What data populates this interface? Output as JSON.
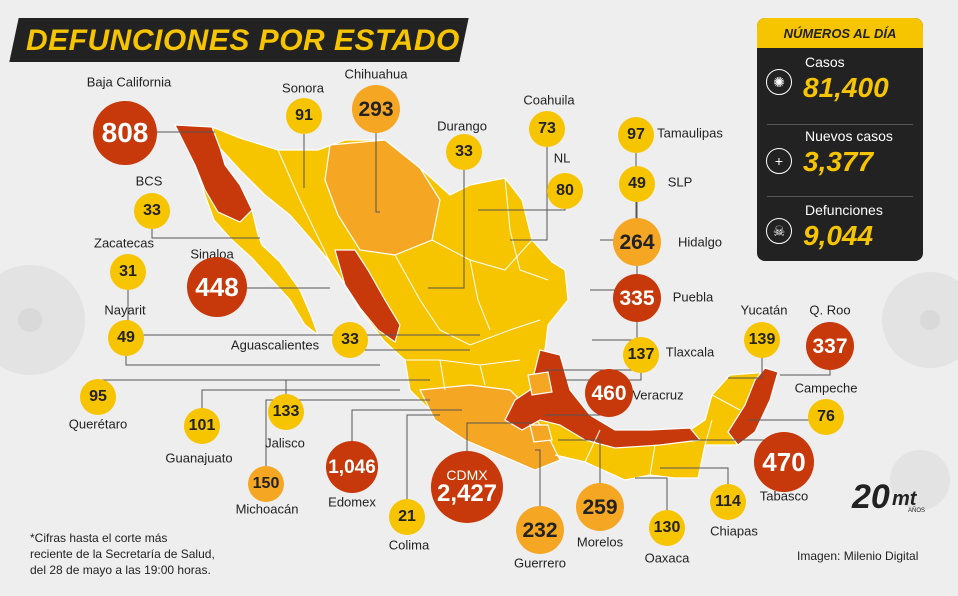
{
  "title": "DEFUNCIONES POR ESTADO",
  "colors": {
    "high": "#c7380a",
    "mid": "#f5a623",
    "low": "#f7c400",
    "dark": "#222222",
    "bg": "#eeeeee"
  },
  "panel": {
    "heading": "NÚMEROS AL DÍA",
    "stats": [
      {
        "label": "Casos",
        "value": "81,400",
        "icon": "virus-icon"
      },
      {
        "label": "Nuevos casos",
        "value": "3,377",
        "icon": "plus-icon"
      },
      {
        "label": "Defunciones",
        "value": "9,044",
        "icon": "skull-icon"
      }
    ]
  },
  "states": [
    {
      "name": "Baja California",
      "value": "808",
      "level": "high"
    },
    {
      "name": "Sonora",
      "value": "91",
      "level": "low"
    },
    {
      "name": "Chihuahua",
      "value": "293",
      "level": "mid"
    },
    {
      "name": "Durango",
      "value": "33",
      "level": "low"
    },
    {
      "name": "Coahuila",
      "value": "73",
      "level": "low"
    },
    {
      "name": "Tamaulipas",
      "value": "97",
      "level": "low"
    },
    {
      "name": "NL",
      "value": "80",
      "level": "low"
    },
    {
      "name": "SLP",
      "value": "49",
      "level": "low"
    },
    {
      "name": "Hidalgo",
      "value": "264",
      "level": "mid"
    },
    {
      "name": "Puebla",
      "value": "335",
      "level": "high"
    },
    {
      "name": "Tlaxcala",
      "value": "137",
      "level": "low"
    },
    {
      "name": "Veracruz",
      "value": "460",
      "level": "high"
    },
    {
      "name": "Yucatán",
      "value": "139",
      "level": "low"
    },
    {
      "name": "Q. Roo",
      "value": "337",
      "level": "high"
    },
    {
      "name": "Campeche",
      "value": "76",
      "level": "low"
    },
    {
      "name": "Tabasco",
      "value": "470",
      "level": "high"
    },
    {
      "name": "Chiapas",
      "value": "114",
      "level": "low"
    },
    {
      "name": "Oaxaca",
      "value": "130",
      "level": "low"
    },
    {
      "name": "Morelos",
      "value": "259",
      "level": "mid"
    },
    {
      "name": "Guerrero",
      "value": "232",
      "level": "mid"
    },
    {
      "name": "CDMX",
      "value": "2,427",
      "level": "high"
    },
    {
      "name": "Colima",
      "value": "21",
      "level": "low"
    },
    {
      "name": "Edomex",
      "value": "1,046",
      "level": "high"
    },
    {
      "name": "Michoacán",
      "value": "150",
      "level": "mid"
    },
    {
      "name": "Jalisco",
      "value": "133",
      "level": "low"
    },
    {
      "name": "Guanajuato",
      "value": "101",
      "level": "low"
    },
    {
      "name": "Querétaro",
      "value": "95",
      "level": "low"
    },
    {
      "name": "Nayarit",
      "value": "49",
      "level": "low"
    },
    {
      "name": "Zacatecas",
      "value": "31",
      "level": "low"
    },
    {
      "name": "Sinaloa",
      "value": "448",
      "level": "high"
    },
    {
      "name": "BCS",
      "value": "33",
      "level": "low"
    },
    {
      "name": "Aguascalientes",
      "value": "33",
      "level": "low"
    }
  ],
  "footnote": "*Cifras hasta el corte más\nreciente de la Secretaría de Salud,\ndel 28 de mayo a las 19:00 horas.",
  "credit": "Imagen: Milenio Digital",
  "logo": {
    "number": "20",
    "brand": "mt",
    "sub": "AÑOS"
  }
}
